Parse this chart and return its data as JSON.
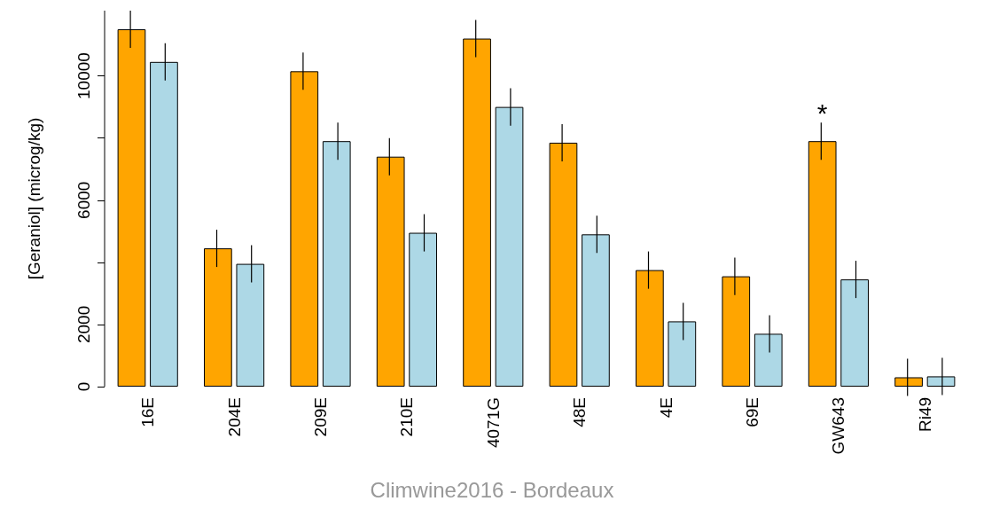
{
  "chart_data": {
    "type": "bar",
    "ylabel": "[Geraniol] (microg/kg)",
    "categories": [
      "16E",
      "204E",
      "209E",
      "210E",
      "4071G",
      "48E",
      "4E",
      "69E",
      "GW643",
      "Ri49"
    ],
    "series": [
      {
        "color": "#ffa500",
        "values": [
          11500,
          4450,
          10150,
          7400,
          11200,
          7850,
          3750,
          3550,
          7900,
          300
        ],
        "errors": [
          600,
          600,
          600,
          600,
          600,
          600,
          600,
          600,
          600,
          600
        ]
      },
      {
        "color": "#add8e6",
        "values": [
          10450,
          3950,
          7900,
          4950,
          9000,
          4900,
          2100,
          1700,
          3450,
          330
        ],
        "errors": [
          600,
          600,
          600,
          600,
          600,
          600,
          600,
          600,
          600,
          600
        ]
      }
    ],
    "ylim": [
      0,
      12100
    ],
    "yticks": [
      0,
      2000,
      {
        "value": 4000,
        "label": null
      },
      6000,
      {
        "value": 8000,
        "label": null
      },
      10000
    ],
    "grid": false,
    "annotations": [
      "Climwine2016 - Bordeaux",
      {
        "text": "*",
        "x": "GW643",
        "y": 7900
      }
    ]
  }
}
